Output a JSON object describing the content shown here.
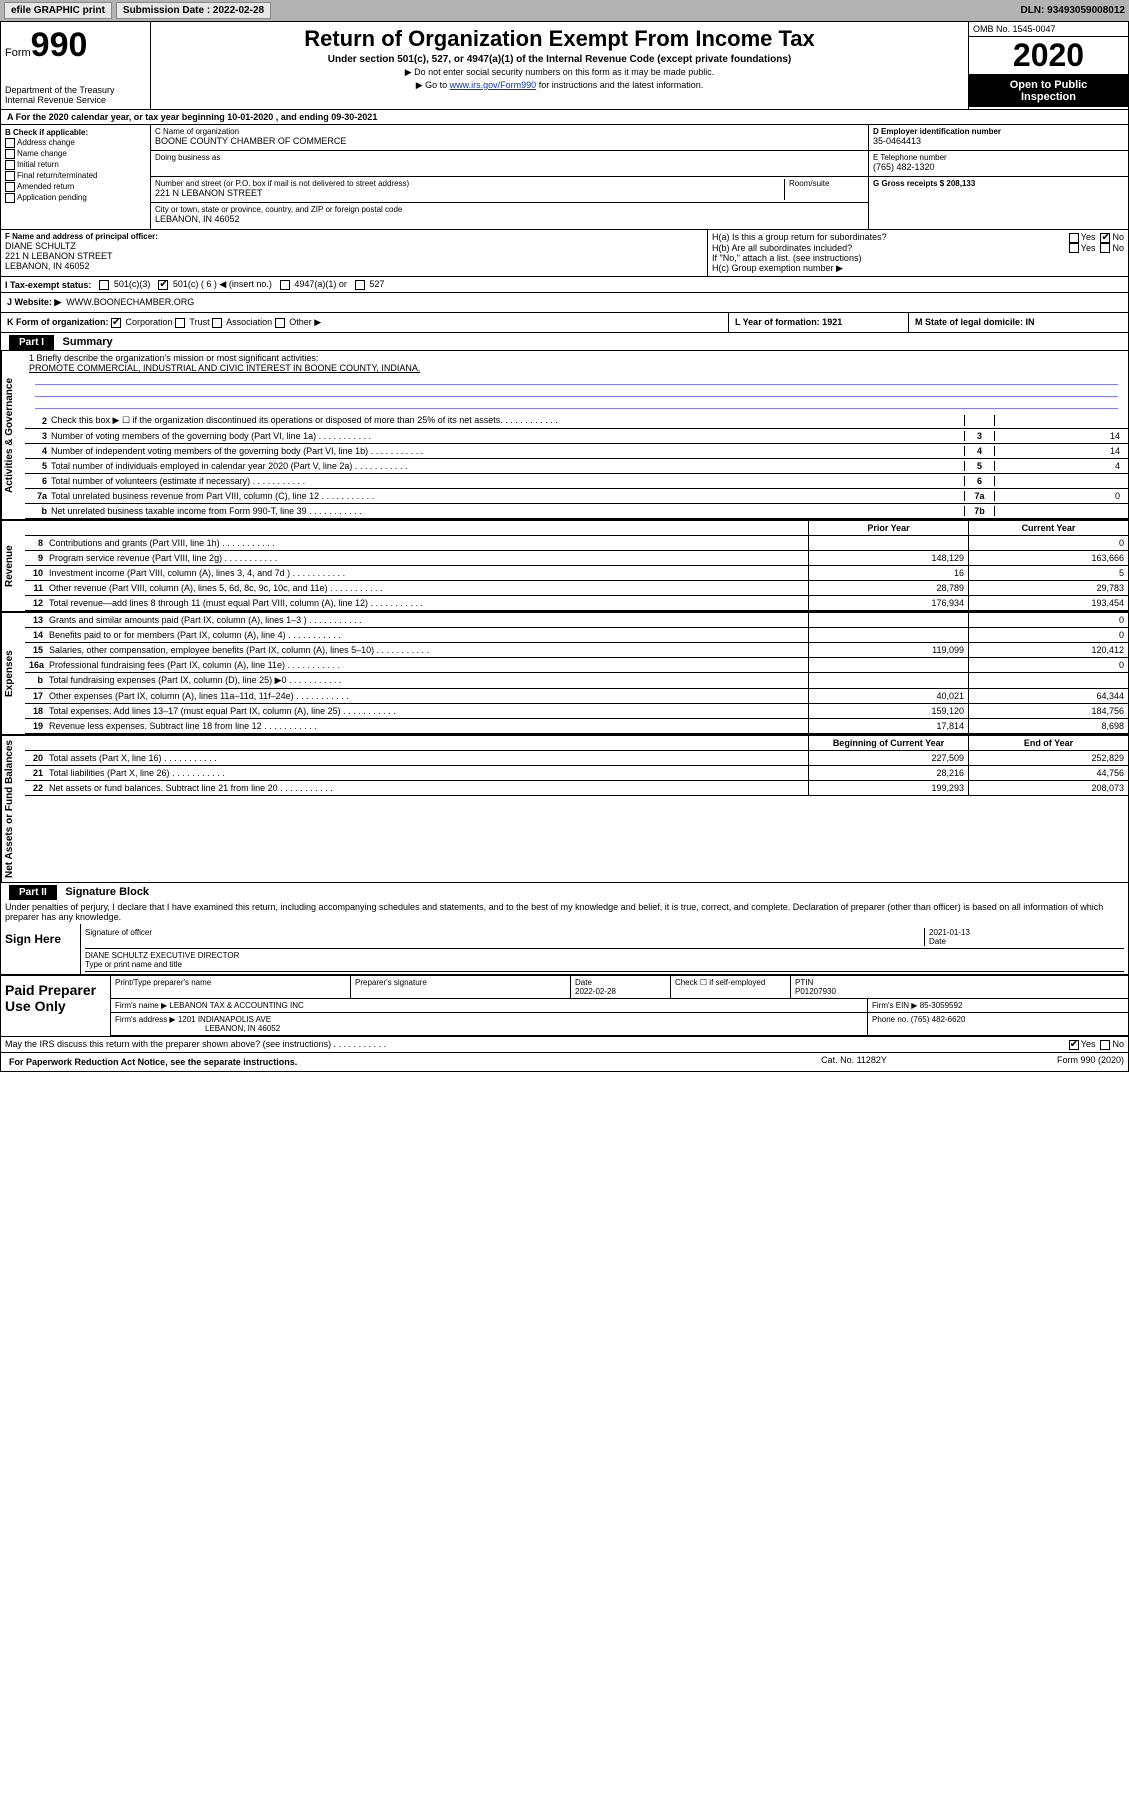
{
  "topbar": {
    "efile": "efile GRAPHIC print",
    "submission_label": "Submission Date : 2022-02-28",
    "dln": "DLN: 93493059008012"
  },
  "header": {
    "form_label": "Form",
    "form_number": "990",
    "dept": "Department of the Treasury\nInternal Revenue Service",
    "title": "Return of Organization Exempt From Income Tax",
    "subtitle": "Under section 501(c), 527, or 4947(a)(1) of the Internal Revenue Code (except private foundations)",
    "instr1": "▶ Do not enter social security numbers on this form as it may be made public.",
    "instr2_pre": "▶ Go to ",
    "instr2_link": "www.irs.gov/Form990",
    "instr2_post": " for instructions and the latest information.",
    "omb": "OMB No. 1545-0047",
    "year": "2020",
    "open_public": "Open to Public\nInspection"
  },
  "a_line": "A For the 2020 calendar year, or tax year beginning 10-01-2020   , and ending 09-30-2021",
  "b": {
    "title": "B Check if applicable:",
    "opts": [
      "Address change",
      "Name change",
      "Initial return",
      "Final return/terminated",
      "Amended return",
      "Application pending"
    ]
  },
  "c": {
    "name_lbl": "C Name of organization",
    "name": "BOONE COUNTY CHAMBER OF COMMERCE",
    "dba_lbl": "Doing business as",
    "addr_lbl": "Number and street (or P.O. box if mail is not delivered to street address)",
    "room_lbl": "Room/suite",
    "addr": "221 N LEBANON STREET",
    "city_lbl": "City or town, state or province, country, and ZIP or foreign postal code",
    "city": "LEBANON, IN  46052"
  },
  "d": {
    "lbl": "D Employer identification number",
    "val": "35-0464413"
  },
  "e": {
    "lbl": "E Telephone number",
    "val": "(765) 482-1320"
  },
  "g": {
    "lbl": "G Gross receipts $ 208,133"
  },
  "f": {
    "lbl": "F Name and address of principal officer:",
    "name": "DIANE SCHULTZ",
    "addr": "221 N LEBANON STREET",
    "city": "LEBANON, IN  46052"
  },
  "h": {
    "a": "H(a)  Is this a group return for subordinates?",
    "b": "H(b)  Are all subordinates included?",
    "note": "If \"No,\" attach a list. (see instructions)",
    "c": "H(c)  Group exemption number ▶"
  },
  "i": {
    "lbl": "I Tax-exempt status:",
    "o1": "501(c)(3)",
    "o2": "501(c) ( 6 ) ◀ (insert no.)",
    "o3": "4947(a)(1) or",
    "o4": "527"
  },
  "j": {
    "lbl": "J  Website: ▶",
    "val": "WWW.BOONECHAMBER.ORG"
  },
  "k": {
    "lbl": "K Form of organization:",
    "opts": [
      "Corporation",
      "Trust",
      "Association",
      "Other ▶"
    ]
  },
  "l": {
    "lbl": "L Year of formation: 1921"
  },
  "m": {
    "lbl": "M State of legal domicile: IN"
  },
  "part1": {
    "hdr": "Part I",
    "title": "Summary"
  },
  "mission": {
    "lbl": "1  Briefly describe the organization's mission or most significant activities:",
    "val": "PROMOTE COMMERCIAL, INDUSTRIAL AND CIVIC INTEREST IN BOONE COUNTY, INDIANA."
  },
  "gov_lines": [
    {
      "n": "2",
      "t": "Check this box ▶ ☐  if the organization discontinued its operations or disposed of more than 25% of its net assets.",
      "b": "",
      "v": ""
    },
    {
      "n": "3",
      "t": "Number of voting members of the governing body (Part VI, line 1a)",
      "b": "3",
      "v": "14"
    },
    {
      "n": "4",
      "t": "Number of independent voting members of the governing body (Part VI, line 1b)",
      "b": "4",
      "v": "14"
    },
    {
      "n": "5",
      "t": "Total number of individuals employed in calendar year 2020 (Part V, line 2a)",
      "b": "5",
      "v": "4"
    },
    {
      "n": "6",
      "t": "Total number of volunteers (estimate if necessary)",
      "b": "6",
      "v": ""
    },
    {
      "n": "7a",
      "t": "Total unrelated business revenue from Part VIII, column (C), line 12",
      "b": "7a",
      "v": "0"
    },
    {
      "n": "b",
      "t": "Net unrelated business taxable income from Form 990-T, line 39",
      "b": "7b",
      "v": ""
    }
  ],
  "rev_hdr": {
    "prior": "Prior Year",
    "current": "Current Year"
  },
  "rev_lines": [
    {
      "n": "8",
      "t": "Contributions and grants (Part VIII, line 1h)",
      "p": "",
      "c": "0"
    },
    {
      "n": "9",
      "t": "Program service revenue (Part VIII, line 2g)",
      "p": "148,129",
      "c": "163,666"
    },
    {
      "n": "10",
      "t": "Investment income (Part VIII, column (A), lines 3, 4, and 7d )",
      "p": "16",
      "c": "5"
    },
    {
      "n": "11",
      "t": "Other revenue (Part VIII, column (A), lines 5, 6d, 8c, 9c, 10c, and 11e)",
      "p": "28,789",
      "c": "29,783"
    },
    {
      "n": "12",
      "t": "Total revenue—add lines 8 through 11 (must equal Part VIII, column (A), line 12)",
      "p": "176,934",
      "c": "193,454"
    }
  ],
  "exp_lines": [
    {
      "n": "13",
      "t": "Grants and similar amounts paid (Part IX, column (A), lines 1–3 )",
      "p": "",
      "c": "0"
    },
    {
      "n": "14",
      "t": "Benefits paid to or for members (Part IX, column (A), line 4)",
      "p": "",
      "c": "0"
    },
    {
      "n": "15",
      "t": "Salaries, other compensation, employee benefits (Part IX, column (A), lines 5–10)",
      "p": "119,099",
      "c": "120,412"
    },
    {
      "n": "16a",
      "t": "Professional fundraising fees (Part IX, column (A), line 11e)",
      "p": "",
      "c": "0"
    },
    {
      "n": "b",
      "t": "Total fundraising expenses (Part IX, column (D), line 25) ▶0",
      "p": "",
      "c": ""
    },
    {
      "n": "17",
      "t": "Other expenses (Part IX, column (A), lines 11a–11d, 11f–24e)",
      "p": "40,021",
      "c": "64,344"
    },
    {
      "n": "18",
      "t": "Total expenses. Add lines 13–17 (must equal Part IX, column (A), line 25)",
      "p": "159,120",
      "c": "184,756"
    },
    {
      "n": "19",
      "t": "Revenue less expenses. Subtract line 18 from line 12",
      "p": "17,814",
      "c": "8,698"
    }
  ],
  "net_hdr": {
    "begin": "Beginning of Current Year",
    "end": "End of Year"
  },
  "net_lines": [
    {
      "n": "20",
      "t": "Total assets (Part X, line 16)",
      "p": "227,509",
      "c": "252,829"
    },
    {
      "n": "21",
      "t": "Total liabilities (Part X, line 26)",
      "p": "28,216",
      "c": "44,756"
    },
    {
      "n": "22",
      "t": "Net assets or fund balances. Subtract line 21 from line 20",
      "p": "199,293",
      "c": "208,073"
    }
  ],
  "part2": {
    "hdr": "Part II",
    "title": "Signature Block"
  },
  "sig": {
    "penalties": "Under penalties of perjury, I declare that I have examined this return, including accompanying schedules and statements, and to the best of my knowledge and belief, it is true, correct, and complete. Declaration of preparer (other than officer) is based on all information of which preparer has any knowledge.",
    "sign_here": "Sign Here",
    "sig_lbl": "Signature of officer",
    "date_lbl": "Date",
    "date_val": "2021-01-13",
    "officer": "DIANE SCHULTZ  EXECUTIVE DIRECTOR",
    "type_lbl": "Type or print name and title"
  },
  "prep": {
    "title": "Paid Preparer Use Only",
    "h1": "Print/Type preparer's name",
    "h2": "Preparer's signature",
    "h3": "Date",
    "date": "2022-02-28",
    "h4": "Check ☐ if self-employed",
    "h5": "PTIN",
    "ptin": "P01207930",
    "firm_lbl": "Firm's name    ▶",
    "firm": "LEBANON TAX & ACCOUNTING INC",
    "ein_lbl": "Firm's EIN ▶",
    "ein": "85-3059592",
    "addr_lbl": "Firm's address ▶",
    "addr": "1201 INDIANAPOLIS AVE",
    "city": "LEBANON, IN  46052",
    "phone_lbl": "Phone no.",
    "phone": "(765) 482-6620"
  },
  "discuss": "May the IRS discuss this return with the preparer shown above? (see instructions)",
  "footer": {
    "paperwork": "For Paperwork Reduction Act Notice, see the separate instructions.",
    "cat": "Cat. No. 11282Y",
    "form": "Form 990 (2020)"
  },
  "vtabs": {
    "gov": "Activities & Governance",
    "rev": "Revenue",
    "exp": "Expenses",
    "net": "Net Assets or Fund Balances"
  }
}
